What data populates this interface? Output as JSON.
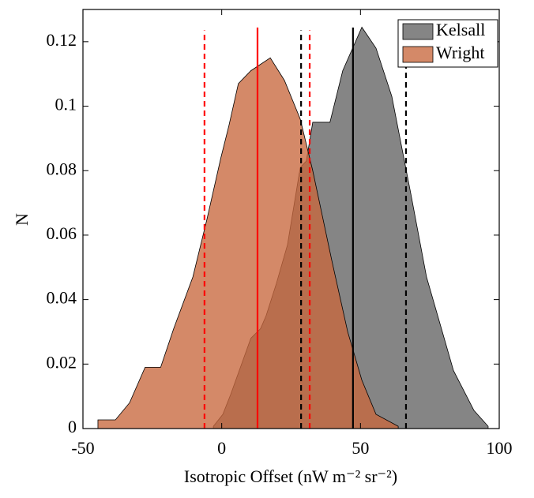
{
  "chart_data": {
    "type": "area",
    "x_label": "Isotropic Offset (nW m⁻² sr⁻²)",
    "y_label": "N",
    "xlim": [
      -50,
      100
    ],
    "ylim": [
      0,
      0.13
    ],
    "xticks": [
      -50,
      0,
      50,
      100
    ],
    "yticks": [
      0,
      0.02,
      0.04,
      0.06,
      0.08,
      0.1,
      0.12
    ],
    "legend": "top-right",
    "series": [
      {
        "name": "Kelsall",
        "color": "#858585",
        "x": [
          -3,
          0.4,
          3.2,
          10.5,
          14,
          16,
          19.7,
          23.7,
          28.3,
          30.5,
          32.8,
          39,
          43.6,
          50.5,
          55.6,
          61.3,
          68.1,
          73.8,
          79.5,
          83.5,
          90.9,
          96
        ],
        "values": [
          0.0007,
          0.0044,
          0.0105,
          0.028,
          0.031,
          0.035,
          0.045,
          0.057,
          0.081,
          0.083,
          0.095,
          0.095,
          0.111,
          0.1245,
          0.118,
          0.103,
          0.073,
          0.047,
          0.03,
          0.018,
          0.0056,
          0.0007
        ]
      },
      {
        "name": "Wright",
        "color": "#c8683e",
        "x": [
          -44.6,
          -38.3,
          -33.2,
          -27.6,
          -22,
          -17.3,
          -10.4,
          -5.3,
          -0.3,
          2.6,
          6,
          10.5,
          17.5,
          22.6,
          28.3,
          32.8,
          39.7,
          45.4,
          50.5,
          55.6,
          63.6
        ],
        "values": [
          0.0027,
          0.0027,
          0.008,
          0.019,
          0.019,
          0.031,
          0.047,
          0.065,
          0.084,
          0.094,
          0.107,
          0.111,
          0.115,
          0.108,
          0.096,
          0.08,
          0.052,
          0.03,
          0.015,
          0.0044,
          0.0007
        ]
      }
    ],
    "vlines": [
      {
        "x": 12.9,
        "top": 0.1244,
        "color": "#ff0000",
        "dashed": false
      },
      {
        "x": -6.2,
        "top": 0.1235,
        "color": "#ff0000",
        "dashed": true
      },
      {
        "x": 31.7,
        "top": 0.1235,
        "color": "#ff0000",
        "dashed": true
      },
      {
        "x": 47.3,
        "top": 0.1244,
        "color": "#000000",
        "dashed": false
      },
      {
        "x": 28.6,
        "top": 0.1235,
        "color": "#000000",
        "dashed": true
      },
      {
        "x": 66.4,
        "top": 0.1235,
        "color": "#000000",
        "dashed": true
      }
    ]
  }
}
